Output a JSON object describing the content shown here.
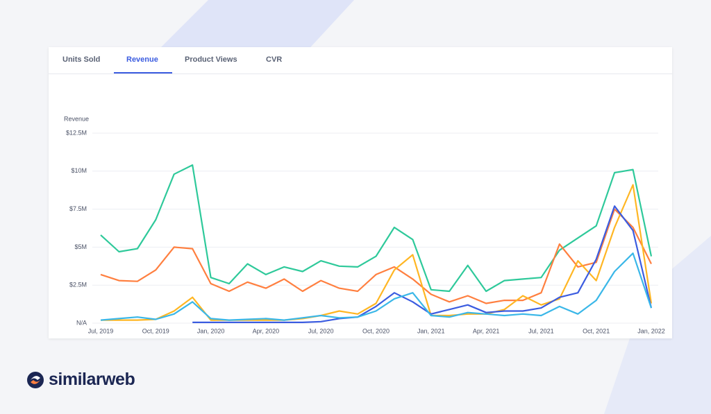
{
  "tabs": [
    "Units Sold",
    "Revenue",
    "Product Views",
    "CVR"
  ],
  "brand": "similarweb",
  "chart_data": {
    "type": "line",
    "y_label": "Revenue",
    "categories": [
      "Jul, 2019",
      null,
      null,
      "Oct, 2019",
      null,
      null,
      "Jan, 2020",
      null,
      null,
      "Apr, 2020",
      null,
      null,
      "Jul, 2020",
      null,
      null,
      "Oct, 2020",
      null,
      null,
      "Jan, 2021",
      null,
      null,
      "Apr, 2021",
      null,
      null,
      "Jul, 2021",
      null,
      null,
      "Oct, 2021",
      null,
      null,
      "Jan, 2022"
    ],
    "ylim": [
      0,
      12.5
    ],
    "yticks": [
      {
        "value": 0,
        "label": "N/A"
      },
      {
        "value": 2.5,
        "label": "$2.5M"
      },
      {
        "value": 5,
        "label": "$5M"
      },
      {
        "value": 7.5,
        "label": "$7.5M"
      },
      {
        "value": 10,
        "label": "$10M"
      },
      {
        "value": 12.5,
        "label": "$12.5M"
      }
    ],
    "grid": true,
    "series": [
      {
        "color": "#2ec99a",
        "values": [
          5.8,
          4.7,
          4.9,
          6.8,
          9.8,
          10.4,
          3.0,
          2.6,
          3.9,
          3.2,
          3.7,
          3.4,
          4.1,
          3.75,
          3.7,
          4.4,
          6.3,
          5.5,
          2.2,
          2.1,
          3.8,
          2.1,
          2.8,
          2.9,
          3.0,
          4.8,
          5.6,
          6.4,
          9.9,
          10.1,
          4.4
        ]
      },
      {
        "color": "#ff7f3f",
        "values": [
          3.2,
          2.8,
          2.75,
          3.5,
          5.0,
          4.9,
          2.6,
          2.1,
          2.7,
          2.3,
          2.9,
          2.1,
          2.8,
          2.3,
          2.1,
          3.2,
          3.7,
          2.9,
          1.9,
          1.4,
          1.8,
          1.3,
          1.5,
          1.5,
          2.0,
          5.2,
          3.7,
          4.0,
          7.5,
          6.3,
          3.9
        ]
      },
      {
        "color": "#ffb623",
        "values": [
          0.2,
          0.2,
          0.2,
          0.25,
          0.8,
          1.7,
          0.2,
          0.2,
          0.2,
          0.2,
          0.2,
          0.3,
          0.5,
          0.8,
          0.6,
          1.3,
          3.5,
          4.5,
          0.5,
          0.5,
          0.6,
          0.6,
          0.9,
          1.8,
          1.2,
          1.6,
          4.1,
          2.8,
          6.3,
          9.1,
          1.3
        ]
      },
      {
        "color": "#3b5ce0",
        "values": [
          null,
          null,
          null,
          null,
          null,
          0.05,
          0.05,
          0.05,
          0.05,
          0.05,
          0.05,
          0.05,
          0.1,
          0.3,
          0.4,
          1.1,
          2.0,
          1.4,
          0.6,
          0.9,
          1.2,
          0.7,
          0.8,
          0.8,
          1.0,
          1.7,
          2.0,
          4.2,
          7.7,
          6.1,
          1.0
        ]
      },
      {
        "color": "#3ab7e8",
        "values": [
          0.2,
          0.3,
          0.4,
          0.25,
          0.6,
          1.4,
          0.3,
          0.2,
          0.25,
          0.3,
          0.2,
          0.35,
          0.5,
          0.35,
          0.4,
          0.8,
          1.6,
          2.0,
          0.5,
          0.4,
          0.7,
          0.6,
          0.5,
          0.6,
          0.5,
          1.1,
          0.6,
          1.5,
          3.4,
          4.6,
          1.0
        ]
      }
    ]
  }
}
